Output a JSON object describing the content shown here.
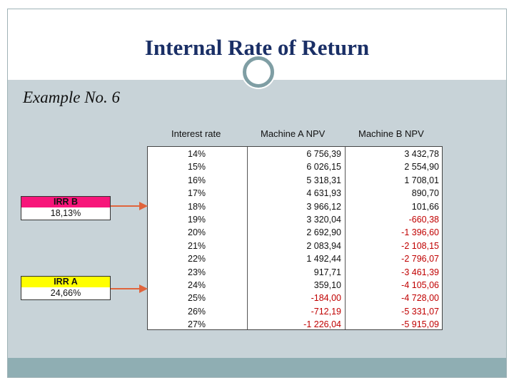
{
  "slide": {
    "title": "Internal Rate of Return",
    "subtitle": "Example No. 6"
  },
  "table": {
    "headers": {
      "rate": "Interest rate",
      "a": "Machine A NPV",
      "b": "Machine B NPV"
    },
    "rows": [
      {
        "rate": "14%",
        "a": "6 756,39",
        "b": "3 432,78"
      },
      {
        "rate": "15%",
        "a": "6 026,15",
        "b": "2 554,90"
      },
      {
        "rate": "16%",
        "a": "5 318,31",
        "b": "1 708,01"
      },
      {
        "rate": "17%",
        "a": "4 631,93",
        "b": "890,70"
      },
      {
        "rate": "18%",
        "a": "3 966,12",
        "b": "101,66"
      },
      {
        "rate": "19%",
        "a": "3 320,04",
        "b": "-660,38"
      },
      {
        "rate": "20%",
        "a": "2 692,90",
        "b": "-1 396,60"
      },
      {
        "rate": "21%",
        "a": "2 083,94",
        "b": "-2 108,15"
      },
      {
        "rate": "22%",
        "a": "1 492,44",
        "b": "-2 796,07"
      },
      {
        "rate": "23%",
        "a": "917,71",
        "b": "-3 461,39"
      },
      {
        "rate": "24%",
        "a": "359,10",
        "b": "-4 105,06"
      },
      {
        "rate": "25%",
        "a": "-184,00",
        "b": "-4 728,00"
      },
      {
        "rate": "26%",
        "a": "-712,19",
        "b": "-5 331,07"
      },
      {
        "rate": "27%",
        "a": "-1 226,04",
        "b": "-5 915,09"
      }
    ]
  },
  "irr_b": {
    "label": "IRR B",
    "value": "18,13%",
    "color": "#f7167a"
  },
  "irr_a": {
    "label": "IRR A",
    "value": "24,66%",
    "color": "#ffff00"
  },
  "colors": {
    "negative": "#c00000",
    "title": "#1a2f66",
    "arrow": "#e0643c",
    "background": "#c8d3d8"
  }
}
